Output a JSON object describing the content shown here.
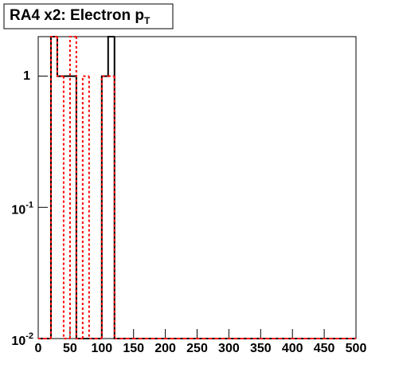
{
  "chart_data": {
    "type": "histogram",
    "title": {
      "text": "RA4 x2: Electron p",
      "subscript": "T"
    },
    "bins": [
      0,
      10,
      20,
      30,
      40,
      50,
      60,
      70,
      80,
      90,
      100,
      110,
      120,
      130,
      140,
      150,
      160,
      170,
      180,
      190,
      200,
      210,
      220,
      230,
      240,
      250,
      260,
      270,
      280,
      290,
      300,
      310,
      320,
      330,
      340,
      350,
      360,
      370,
      380,
      390,
      400,
      410,
      420,
      430,
      440,
      450,
      460,
      470,
      480,
      490,
      500
    ],
    "series": [
      {
        "color": "#000000",
        "style": "solid",
        "values": [
          0,
          0,
          2,
          1,
          1,
          1,
          0,
          0,
          0,
          0,
          1,
          2,
          0,
          0,
          0,
          0,
          0,
          0,
          0,
          0,
          0,
          0,
          0,
          0,
          0,
          0,
          0,
          0,
          0,
          0,
          0,
          0,
          0,
          0,
          0,
          0,
          0,
          0,
          0,
          0,
          0,
          0,
          0,
          0,
          0,
          0,
          0,
          0,
          0,
          0
        ]
      },
      {
        "color": "#ff0000",
        "style": "dotted",
        "values": [
          0,
          0,
          2,
          1,
          0,
          2,
          0,
          1,
          0,
          0,
          1,
          1,
          0,
          0,
          0,
          0,
          0,
          0,
          0,
          0,
          0,
          0,
          0,
          0,
          0,
          0,
          0,
          0,
          0,
          0,
          0,
          0,
          0,
          0,
          0,
          0,
          0,
          0,
          0,
          0,
          0,
          0,
          0,
          0,
          0,
          0,
          0,
          0,
          0,
          0
        ]
      }
    ],
    "xlim": [
      0,
      500
    ],
    "xticks": [
      0,
      50,
      100,
      150,
      200,
      250,
      300,
      350,
      400,
      450,
      500
    ],
    "ylim": [
      0.01,
      2
    ],
    "log_y": true,
    "yticks": [
      {
        "value": 0.01,
        "label": "10",
        "exponent": "-2"
      },
      {
        "value": 0.1,
        "label": "10",
        "exponent": "-1"
      },
      1
    ]
  }
}
